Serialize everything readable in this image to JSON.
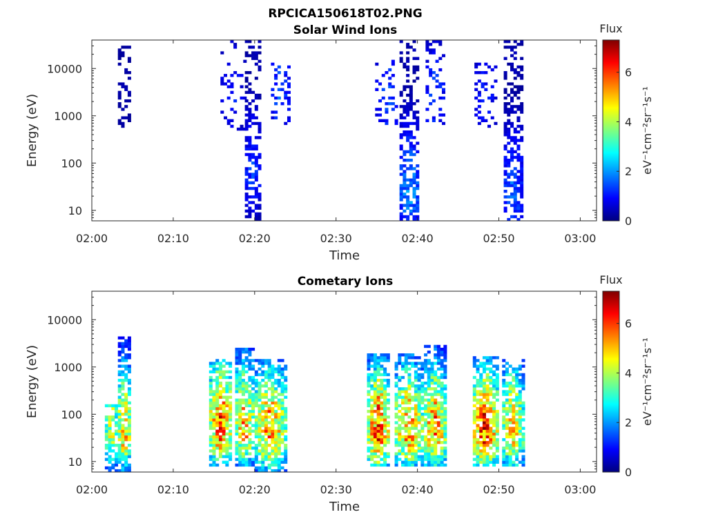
{
  "figure_title": "RPCICA150618T02.PNG",
  "colormap_stops": [
    "#00007f",
    "#0000ff",
    "#007fff",
    "#00ffff",
    "#7fff7f",
    "#ffff00",
    "#ff7f00",
    "#ff0000",
    "#7f0000"
  ],
  "chart_data": [
    {
      "type": "heatmap",
      "title": "Solar Wind Ions",
      "xlabel": "Time",
      "ylabel": "Energy (eV)",
      "x_ticks": [
        "02:00",
        "02:10",
        "02:20",
        "02:30",
        "02:40",
        "02:50",
        "03:00"
      ],
      "x_tick_minutes": [
        0,
        10,
        20,
        30,
        40,
        50,
        60
      ],
      "xlim_minutes": [
        0,
        62
      ],
      "y_scale": "log",
      "ylim": [
        6,
        40000
      ],
      "y_ticks": [
        10,
        100,
        1000,
        10000
      ],
      "y_tick_labels": [
        "10",
        "100",
        "1000",
        "10000"
      ],
      "colorbar": {
        "label": "Flux",
        "unit": "eV⁻¹cm⁻²sr⁻¹s⁻¹",
        "range": [
          0,
          7.3
        ],
        "ticks": [
          0,
          2,
          4,
          6
        ]
      },
      "bursts": [
        {
          "start": 3.2,
          "end": 4.8,
          "emin": 600,
          "emax": 30000,
          "peak_flux": 0.4,
          "peak_energy": 2000,
          "density": 0.35
        },
        {
          "start": 15.8,
          "end": 18.8,
          "emin": 300,
          "emax": 35000,
          "peak_flux": 1.2,
          "peak_energy": 2000,
          "density": 0.15
        },
        {
          "start": 18.8,
          "end": 20.6,
          "emin": 6,
          "emax": 40000,
          "peak_flux": 1.5,
          "peak_energy": 50,
          "density": 0.6
        },
        {
          "start": 22.0,
          "end": 24.2,
          "emin": 700,
          "emax": 12000,
          "peak_flux": 1.6,
          "peak_energy": 2000,
          "density": 0.25
        },
        {
          "start": 34.8,
          "end": 37.6,
          "emin": 700,
          "emax": 15000,
          "peak_flux": 1.6,
          "peak_energy": 2000,
          "density": 0.2
        },
        {
          "start": 37.8,
          "end": 40.2,
          "emin": 6,
          "emax": 40000,
          "peak_flux": 2.2,
          "peak_energy": 20,
          "density": 0.6
        },
        {
          "start": 41.0,
          "end": 43.2,
          "emin": 700,
          "emax": 40000,
          "peak_flux": 1.5,
          "peak_energy": 2000,
          "density": 0.25
        },
        {
          "start": 47.0,
          "end": 49.6,
          "emin": 600,
          "emax": 12000,
          "peak_flux": 1.2,
          "peak_energy": 2000,
          "density": 0.25
        },
        {
          "start": 50.6,
          "end": 52.8,
          "emin": 6,
          "emax": 40000,
          "peak_flux": 1.8,
          "peak_energy": 20,
          "density": 0.6
        }
      ]
    },
    {
      "type": "heatmap",
      "title": "Cometary Ions",
      "xlabel": "Time",
      "ylabel": "Energy (eV)",
      "x_ticks": [
        "02:00",
        "02:10",
        "02:20",
        "02:30",
        "02:40",
        "02:50",
        "03:00"
      ],
      "x_tick_minutes": [
        0,
        10,
        20,
        30,
        40,
        50,
        60
      ],
      "xlim_minutes": [
        0,
        62
      ],
      "y_scale": "log",
      "ylim": [
        6,
        40000
      ],
      "y_ticks": [
        10,
        100,
        1000,
        10000
      ],
      "y_tick_labels": [
        "10",
        "100",
        "1000",
        "10000"
      ],
      "colorbar": {
        "label": "Flux",
        "unit": "eV⁻¹cm⁻²sr⁻¹s⁻¹",
        "range": [
          0,
          7.3
        ],
        "ticks": [
          0,
          2,
          4,
          6
        ]
      },
      "bursts": [
        {
          "start": 1.6,
          "end": 3.2,
          "emin": 6,
          "emax": 150,
          "peak_flux": 4.8,
          "peak_energy": 40,
          "density": 0.7
        },
        {
          "start": 3.2,
          "end": 4.8,
          "emin": 6,
          "emax": 4000,
          "peak_flux": 5.8,
          "peak_energy": 40,
          "density": 0.85
        },
        {
          "start": 14.4,
          "end": 17.2,
          "emin": 8,
          "emax": 1300,
          "peak_flux": 6.5,
          "peak_energy": 50,
          "density": 0.85
        },
        {
          "start": 17.6,
          "end": 20.0,
          "emin": 8,
          "emax": 2300,
          "peak_flux": 5.8,
          "peak_energy": 50,
          "density": 0.85
        },
        {
          "start": 20.0,
          "end": 23.8,
          "emin": 6,
          "emax": 1300,
          "peak_flux": 6.0,
          "peak_energy": 40,
          "density": 0.85
        },
        {
          "start": 33.8,
          "end": 36.6,
          "emin": 8,
          "emax": 1700,
          "peak_flux": 6.5,
          "peak_energy": 40,
          "density": 0.85
        },
        {
          "start": 37.2,
          "end": 40.6,
          "emin": 8,
          "emax": 1700,
          "peak_flux": 6.0,
          "peak_energy": 40,
          "density": 0.8
        },
        {
          "start": 40.8,
          "end": 43.4,
          "emin": 8,
          "emax": 2800,
          "peak_flux": 6.3,
          "peak_energy": 40,
          "density": 0.85
        },
        {
          "start": 46.8,
          "end": 49.8,
          "emin": 8,
          "emax": 1600,
          "peak_flux": 6.8,
          "peak_energy": 40,
          "density": 0.85
        },
        {
          "start": 50.4,
          "end": 53.0,
          "emin": 8,
          "emax": 1300,
          "peak_flux": 5.6,
          "peak_energy": 40,
          "density": 0.8
        }
      ]
    }
  ]
}
